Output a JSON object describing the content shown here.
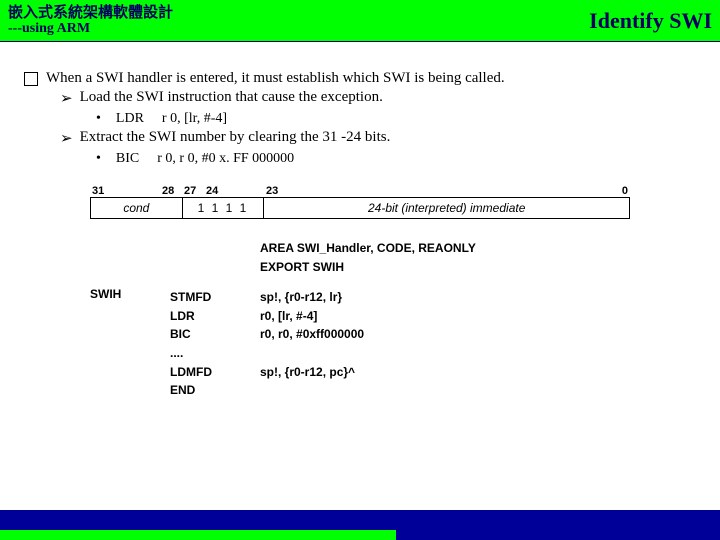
{
  "header": {
    "title_cn": "嵌入式系統架構軟體設計",
    "subtitle": "---using ARM",
    "right": "Identify SWI"
  },
  "content": {
    "main": "When a SWI handler is entered, it must establish which SWI is being called.",
    "sub1": "Load the SWI instruction that cause the exception.",
    "code1_mnem": "LDR",
    "code1_arg": "r 0, [lr, #-4]",
    "sub2": "Extract the SWI number by clearing the 31 -24 bits.",
    "code2_mnem": "BIC",
    "code2_arg": "r 0, r 0, #0 x. FF 000000"
  },
  "encoding": {
    "bits": [
      "31",
      "28",
      "27",
      "24",
      "23",
      "0"
    ],
    "bit_widths": [
      70,
      22,
      22,
      60,
      22,
      344
    ],
    "fields": [
      "cond",
      "1 1 1 1",
      "24-bit (interpreted) immediate"
    ],
    "field_widths": [
      92,
      82,
      366
    ]
  },
  "asm": {
    "label": "SWIH",
    "lines": [
      {
        "m": "",
        "a": "AREA SWI_Handler, CODE, REAONLY"
      },
      {
        "m": "",
        "a": "EXPORT SWIH"
      },
      {
        "m": "",
        "a": ""
      },
      {
        "m": "STMFD",
        "a": "sp!, {r0-r12, lr}"
      },
      {
        "m": "LDR",
        "a": "r0, [lr, #-4]"
      },
      {
        "m": "BIC",
        "a": "r0, r0, #0xff000000"
      },
      {
        "m": "....",
        "a": ""
      },
      {
        "m": "LDMFD",
        "a": "sp!, {r0-r12, pc}^"
      },
      {
        "m": "END",
        "a": ""
      }
    ]
  }
}
